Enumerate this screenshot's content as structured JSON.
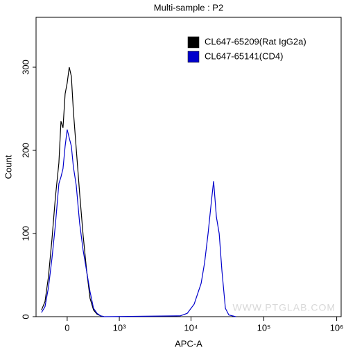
{
  "chart_data": {
    "type": "line",
    "title": "Multi-sample : P2",
    "x_label": "APC-A",
    "y_label": "Count",
    "watermark": "WWW.PTGLAB.COM",
    "xscale": "biexponential",
    "xlim": [
      -460,
      1150000
    ],
    "xticks": [
      0,
      {
        "value": 1000,
        "label": "10³"
      },
      {
        "value": 10000,
        "label": "10⁴"
      },
      {
        "value": 100000,
        "label": "10⁵"
      },
      {
        "value": 1000000,
        "label": "10⁶"
      }
    ],
    "ylim": [
      0,
      360
    ],
    "yticks": [
      0,
      100,
      200,
      300
    ],
    "legend": "top-right",
    "series": [
      {
        "name": "CL647-65209(Rat IgG2a)",
        "color": "#000000",
        "x": [
          -361,
          -304,
          -251,
          -200,
          -153,
          -106,
          -79,
          -53,
          -26,
          0,
          26,
          53,
          79,
          116,
          162,
          210,
          261,
          315,
          373,
          436,
          505,
          577
        ],
        "values": [
          8,
          18,
          48,
          93,
          143,
          185,
          235,
          227,
          268,
          281,
          300,
          289,
          247,
          202,
          148,
          98,
          56,
          22,
          8,
          3,
          1,
          0
        ]
      },
      {
        "name": "CL647-65141(CD4)",
        "color": "#0000cc",
        "x": [
          -361,
          -304,
          -251,
          -200,
          -153,
          -106,
          -79,
          -53,
          -26,
          0,
          26,
          53,
          79,
          116,
          162,
          210,
          261,
          315,
          373,
          436,
          505,
          577,
          7140,
          8880,
          11050,
          13780,
          15380,
          17160,
          19130,
          20440,
          22320,
          24380,
          26600,
          29680,
          33130,
          41200
        ],
        "values": [
          5,
          12,
          35,
          70,
          110,
          160,
          168,
          178,
          205,
          225,
          215,
          205,
          180,
          158,
          112,
          80,
          55,
          30,
          10,
          4,
          1,
          0,
          1,
          4,
          15,
          40,
          65,
          100,
          140,
          163,
          120,
          100,
          55,
          10,
          2,
          0
        ]
      }
    ]
  }
}
